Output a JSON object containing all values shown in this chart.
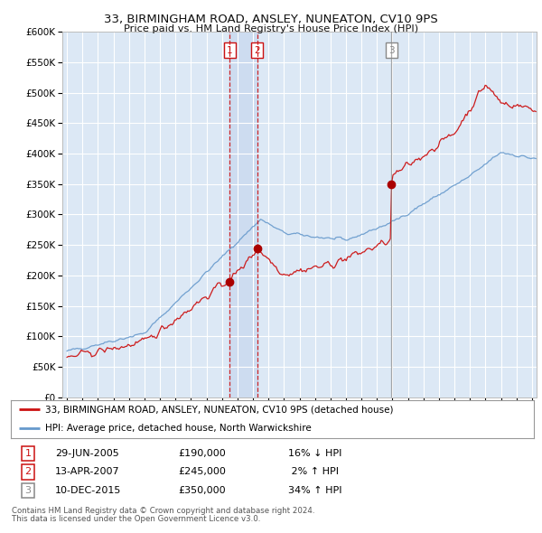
{
  "title": "33, BIRMINGHAM ROAD, ANSLEY, NUNEATON, CV10 9PS",
  "subtitle": "Price paid vs. HM Land Registry's House Price Index (HPI)",
  "fig_bg": "#ffffff",
  "plot_bg": "#dce8f5",
  "grid_color": "#ffffff",
  "hpi_color": "#6699cc",
  "price_color": "#cc1111",
  "vline12_color": "#cc1111",
  "vline3_color": "#888888",
  "shade_color": "#c8d8ee",
  "marker_color": "#aa0000",
  "transactions": [
    {
      "label": "1",
      "date_num": 2005.49,
      "price": 190000,
      "text": "29-JUN-2005",
      "pct": "16% ↓ HPI"
    },
    {
      "label": "2",
      "date_num": 2007.28,
      "price": 245000,
      "text": "13-APR-2007",
      "pct": "2% ↑ HPI"
    },
    {
      "label": "3",
      "date_num": 2015.94,
      "price": 350000,
      "text": "10-DEC-2015",
      "pct": "34% ↑ HPI"
    }
  ],
  "legend_entry1": "33, BIRMINGHAM ROAD, ANSLEY, NUNEATON, CV10 9PS (detached house)",
  "legend_entry2": "HPI: Average price, detached house, North Warwickshire",
  "footer1": "Contains HM Land Registry data © Crown copyright and database right 2024.",
  "footer2": "This data is licensed under the Open Government Licence v3.0.",
  "ylim": [
    0,
    600000
  ],
  "yticks": [
    0,
    50000,
    100000,
    150000,
    200000,
    250000,
    300000,
    350000,
    400000,
    450000,
    500000,
    550000,
    600000
  ],
  "xlim_start": 1994.7,
  "xlim_end": 2025.3
}
